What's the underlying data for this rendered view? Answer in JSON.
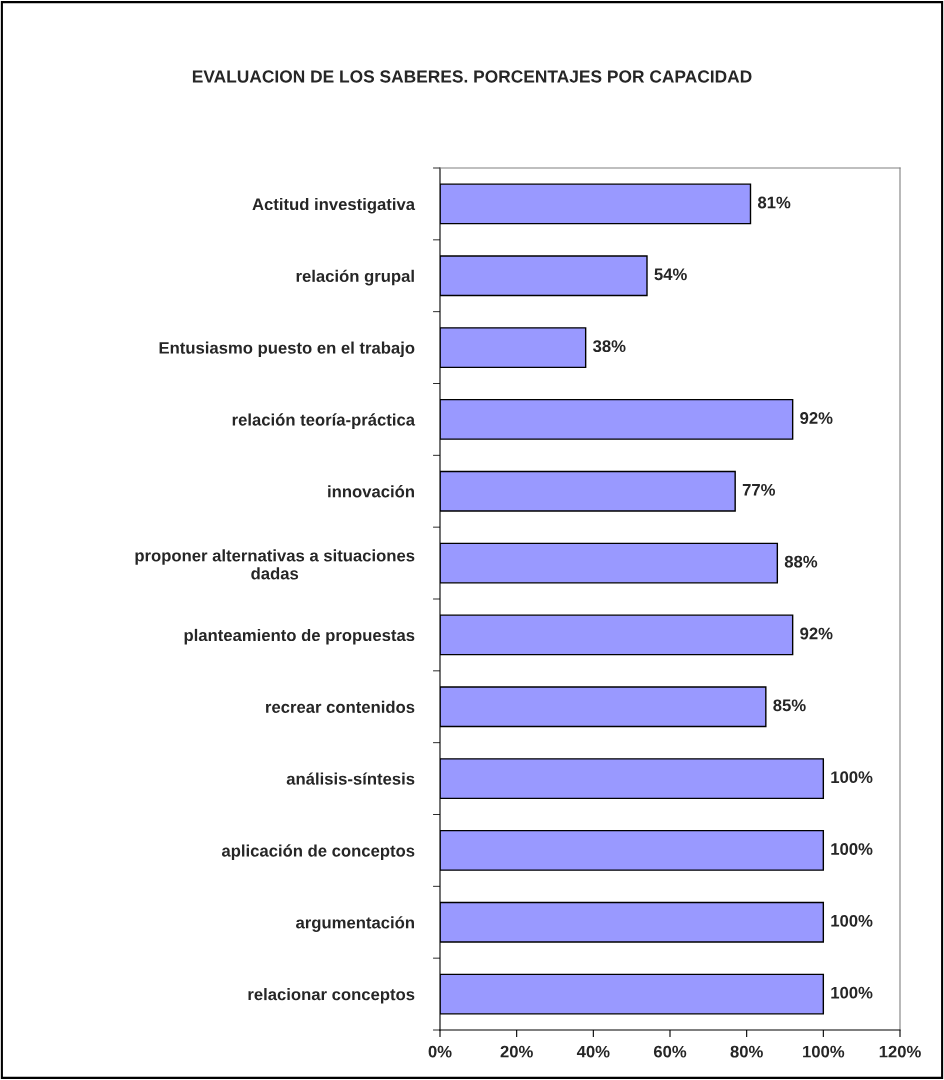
{
  "chart_data": {
    "type": "bar",
    "orientation": "horizontal",
    "title": "EVALUACION DE LOS SABERES. PORCENTAJES POR CAPACIDAD",
    "categories": [
      "Actitud investigativa",
      "relación grupal",
      "Entusiasmo puesto en el trabajo",
      "relación teoría-práctica",
      "innovación",
      "proponer alternativas a situaciones\ndadas",
      "planteamiento de propuestas",
      "recrear contenidos",
      "análisis-síntesis",
      "aplicación de conceptos",
      "argumentación",
      "relacionar conceptos"
    ],
    "values": [
      81,
      54,
      38,
      92,
      77,
      88,
      92,
      85,
      100,
      100,
      100,
      100
    ],
    "value_labels": [
      "81%",
      "54%",
      "38%",
      "92%",
      "77%",
      "88%",
      "92%",
      "85%",
      "100%",
      "100%",
      "100%",
      "100%"
    ],
    "color": "#9999ff",
    "xlim": [
      0,
      120
    ],
    "xticks": [
      {
        "value": 0,
        "label": "0%"
      },
      {
        "value": 20,
        "label": "20%"
      },
      {
        "value": 40,
        "label": "40%"
      },
      {
        "value": 60,
        "label": "60%"
      },
      {
        "value": 80,
        "label": "80%"
      },
      {
        "value": 100,
        "label": "100%"
      },
      {
        "value": 120,
        "label": "120%"
      }
    ],
    "grid": false,
    "legend": false
  }
}
